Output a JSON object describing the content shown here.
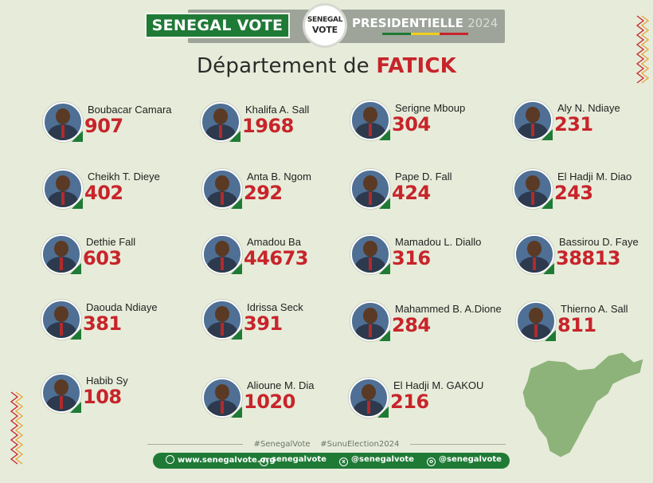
{
  "header": {
    "brand": "SENEGAL VOTE",
    "logo_top": "SENEGAL",
    "logo_bottom": "VOTE",
    "label": "PRESIDENTIELLE",
    "year": "2024",
    "flag_colors": [
      "#1f7a36",
      "#f2cf1d",
      "#c8242b"
    ]
  },
  "title": {
    "prefix": "Département de ",
    "department": "FATICK"
  },
  "candidates": [
    {
      "name": "Boubacar Camara",
      "votes": "907"
    },
    {
      "name": "Khalifa A. Sall",
      "votes": "1968"
    },
    {
      "name": "Serigne Mboup",
      "votes": "304"
    },
    {
      "name": "Aly N. Ndiaye",
      "votes": "231"
    },
    {
      "name": "Cheikh T. Dieye",
      "votes": "402"
    },
    {
      "name": "Anta B. Ngom",
      "votes": "292"
    },
    {
      "name": "Pape D. Fall",
      "votes": "424"
    },
    {
      "name": "El Hadji M. Diao",
      "votes": "243"
    },
    {
      "name": "Dethie Fall",
      "votes": "603"
    },
    {
      "name": "Amadou Ba",
      "votes": "44673"
    },
    {
      "name": "Mamadou L. Diallo",
      "votes": "316"
    },
    {
      "name": "Bassirou D. Faye",
      "votes": "38813"
    },
    {
      "name": "Daouda Ndiaye",
      "votes": "381"
    },
    {
      "name": "Idrissa Seck",
      "votes": "391"
    },
    {
      "name": "Mahammed B. A.Dione",
      "votes": "284"
    },
    {
      "name": "Thierno A. Sall",
      "votes": "811"
    },
    {
      "name": "Habib Sy",
      "votes": "108"
    },
    {
      "name": "Alioune M. Dia",
      "votes": "1020"
    },
    {
      "name": "El Hadji M. GAKOU",
      "votes": "216"
    }
  ],
  "footer": {
    "hashtag_1": "#SenegalVote",
    "hashtag_2": "#SunuElection2024",
    "website": "www.senegalvote.org",
    "facebook": "senegalvote",
    "twitter": "@senegalvote",
    "instagram": "@senegalvote"
  },
  "colors": {
    "accent_red": "#c8242b",
    "brand_green": "#1f7a36",
    "background": "#e6ecd9"
  },
  "icons": {
    "website": "globe-icon",
    "facebook": "facebook-icon",
    "twitter": "x-icon",
    "instagram": "instagram-icon"
  }
}
